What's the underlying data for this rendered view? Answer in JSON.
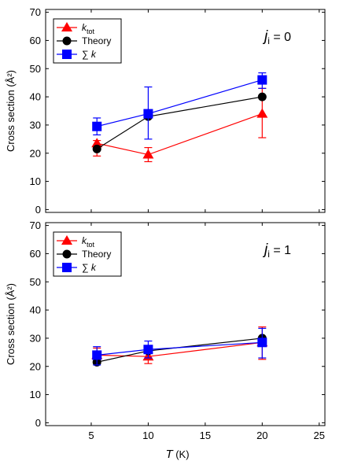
{
  "chart_data": [
    {
      "type": "line",
      "panel": "top",
      "ylabel": "Cross section (Å²)",
      "xlabel": "",
      "xlim": [
        1,
        25.5
      ],
      "ylim": [
        -1,
        71
      ],
      "xticks": [
        5,
        10,
        15,
        20,
        25
      ],
      "yticks": [
        0,
        10,
        20,
        30,
        40,
        50,
        60,
        70
      ],
      "xtick_labels_shown": false,
      "annotation": {
        "italic": "j",
        "sub": "i",
        "rest": " = 0"
      },
      "legend_position": "top-left",
      "series": [
        {
          "name_main": "k",
          "name_sub": "tot",
          "color": "#ff0000",
          "marker": "triangle",
          "x": [
            5.5,
            10,
            20
          ],
          "y": [
            23.5,
            19.5,
            34
          ],
          "err": [
            [
              19,
              24.5
            ],
            [
              17,
              22
            ],
            [
              25.5,
              43
            ]
          ]
        },
        {
          "name_main": "Theory",
          "name_sub": "",
          "color": "#000000",
          "marker": "circle",
          "x": [
            5.5,
            10,
            20
          ],
          "y": [
            21.5,
            33,
            40
          ],
          "err": null
        },
        {
          "name_main": "∑ k",
          "name_sub": "",
          "color": "#0000ff",
          "marker": "square",
          "x": [
            5.5,
            10,
            20
          ],
          "y": [
            29.5,
            34,
            46
          ],
          "err": [
            [
              26.5,
              32.5
            ],
            [
              25,
              43.5
            ],
            [
              43,
              48.5
            ]
          ]
        }
      ]
    },
    {
      "type": "line",
      "panel": "bottom",
      "ylabel": "Cross section (Å²)",
      "xlabel": "T (K)",
      "xlim": [
        1,
        25.5
      ],
      "ylim": [
        -1,
        71
      ],
      "xticks": [
        5,
        10,
        15,
        20,
        25
      ],
      "yticks": [
        0,
        10,
        20,
        30,
        40,
        50,
        60,
        70
      ],
      "xtick_labels_shown": true,
      "annotation": {
        "italic": "j",
        "sub": "i",
        "rest": " = 1"
      },
      "legend_position": "top-left",
      "series": [
        {
          "name_main": "k",
          "name_sub": "tot",
          "color": "#ff0000",
          "marker": "triangle",
          "x": [
            5.5,
            10,
            20
          ],
          "y": [
            24,
            23.5,
            28.5
          ],
          "err": [
            [
              22,
              26.5
            ],
            [
              21,
              25.5
            ],
            [
              22.5,
              34
            ]
          ]
        },
        {
          "name_main": "Theory",
          "name_sub": "",
          "color": "#000000",
          "marker": "circle",
          "x": [
            5.5,
            10,
            20
          ],
          "y": [
            21.5,
            25.5,
            30
          ],
          "err": null
        },
        {
          "name_main": "∑ k",
          "name_sub": "",
          "color": "#0000ff",
          "marker": "square",
          "x": [
            5.5,
            10,
            20
          ],
          "y": [
            24,
            26,
            28.5
          ],
          "err": [
            [
              20.5,
              27
            ],
            [
              23,
              29
            ],
            [
              23,
              33.5
            ]
          ]
        }
      ]
    }
  ]
}
